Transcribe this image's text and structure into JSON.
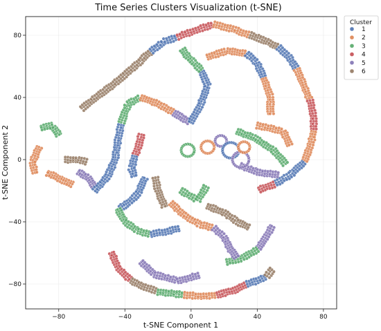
{
  "chart_data": {
    "type": "scatter",
    "title": "Time Series Clusters Visualization (t-SNE)",
    "xlabel": "t-SNE Component 1",
    "ylabel": "t-SNE Component 2",
    "xlim": [
      -100,
      88
    ],
    "ylim": [
      -96,
      92
    ],
    "xticks": [
      -80,
      -40,
      0,
      40,
      80
    ],
    "yticks": [
      -80,
      -40,
      0,
      40,
      80
    ],
    "xtick_labels": [
      "−80",
      "−40",
      "0",
      "40",
      "80"
    ],
    "ytick_labels": [
      "−80",
      "−40",
      "0",
      "40",
      "80"
    ],
    "grid": true,
    "legend": {
      "title": "Cluster",
      "placement": "outside-upper-right"
    },
    "series": [
      {
        "name": "1",
        "color": "#4c72b0"
      },
      {
        "name": "2",
        "color": "#dd8452"
      },
      {
        "name": "3",
        "color": "#55a868"
      },
      {
        "name": "4",
        "color": "#c44e52"
      },
      {
        "name": "5",
        "color": "#8172b3"
      },
      {
        "name": "6",
        "color": "#937860"
      }
    ],
    "curves": [
      {
        "series": "6",
        "points": [
          [
            -66,
            33
          ],
          [
            -56,
            41
          ],
          [
            -45,
            50
          ],
          [
            -34,
            60
          ],
          [
            -24,
            70
          ]
        ]
      },
      {
        "series": "1",
        "points": [
          [
            -24,
            70
          ],
          [
            -16,
            76
          ],
          [
            -8,
            79
          ]
        ]
      },
      {
        "series": "4",
        "points": [
          [
            -8,
            79
          ],
          [
            0,
            82
          ],
          [
            8,
            85
          ],
          [
            14,
            87
          ]
        ]
      },
      {
        "series": "2",
        "points": [
          [
            14,
            87
          ],
          [
            25,
            84
          ],
          [
            36,
            80
          ]
        ]
      },
      {
        "series": "6",
        "points": [
          [
            36,
            80
          ],
          [
            46,
            76
          ],
          [
            53,
            72
          ]
        ]
      },
      {
        "series": "1",
        "points": [
          [
            53,
            72
          ],
          [
            59,
            66
          ],
          [
            64,
            58
          ]
        ]
      },
      {
        "series": "2",
        "points": [
          [
            64,
            58
          ],
          [
            68,
            48
          ],
          [
            72,
            38
          ]
        ]
      },
      {
        "series": "4",
        "points": [
          [
            72,
            38
          ],
          [
            74,
            28
          ],
          [
            74,
            18
          ]
        ]
      },
      {
        "series": "2",
        "points": [
          [
            74,
            18
          ],
          [
            72,
            8
          ],
          [
            68,
            -2
          ]
        ]
      },
      {
        "series": "1",
        "points": [
          [
            68,
            -2
          ],
          [
            60,
            -10
          ],
          [
            50,
            -16
          ]
        ]
      },
      {
        "series": "4",
        "points": [
          [
            50,
            -16
          ],
          [
            44,
            -18
          ],
          [
            40,
            -20
          ]
        ]
      },
      {
        "series": "5",
        "points": [
          [
            49,
            -43
          ],
          [
            44,
            -52
          ],
          [
            40,
            -58
          ]
        ]
      },
      {
        "series": "3",
        "points": [
          [
            40,
            -58
          ],
          [
            30,
            -64
          ],
          [
            20,
            -66
          ]
        ]
      },
      {
        "series": "4",
        "points": [
          [
            -48,
            -60
          ],
          [
            -44,
            -70
          ],
          [
            -36,
            -78
          ]
        ]
      },
      {
        "series": "6",
        "points": [
          [
            -36,
            -78
          ],
          [
            -28,
            -82
          ],
          [
            -20,
            -85
          ]
        ]
      },
      {
        "series": "3",
        "points": [
          [
            -20,
            -85
          ],
          [
            -12,
            -86
          ],
          [
            -4,
            -87
          ]
        ]
      },
      {
        "series": "2",
        "points": [
          [
            -4,
            -87
          ],
          [
            6,
            -88
          ],
          [
            16,
            -87
          ]
        ]
      },
      {
        "series": "4",
        "points": [
          [
            16,
            -87
          ],
          [
            26,
            -84
          ],
          [
            34,
            -80
          ]
        ]
      },
      {
        "series": "1",
        "points": [
          [
            34,
            -80
          ],
          [
            40,
            -78
          ],
          [
            46,
            -75
          ]
        ]
      },
      {
        "series": "6",
        "points": [
          [
            46,
            -75
          ],
          [
            48,
            -72
          ],
          [
            50,
            -70
          ]
        ]
      },
      {
        "series": "1",
        "points": [
          [
            -28,
            -12
          ],
          [
            -32,
            -22
          ],
          [
            -38,
            -28
          ],
          [
            -44,
            -32
          ]
        ]
      },
      {
        "series": "3",
        "points": [
          [
            -44,
            -32
          ],
          [
            -40,
            -40
          ],
          [
            -32,
            -46
          ],
          [
            -24,
            -48
          ]
        ]
      },
      {
        "series": "1",
        "points": [
          [
            -24,
            -48
          ],
          [
            -14,
            -46
          ],
          [
            -6,
            -44
          ]
        ]
      },
      {
        "series": "2",
        "points": [
          [
            -12,
            -28
          ],
          [
            -4,
            -36
          ],
          [
            6,
            -42
          ],
          [
            14,
            -44
          ]
        ]
      },
      {
        "series": "5",
        "points": [
          [
            14,
            -44
          ],
          [
            20,
            -50
          ],
          [
            24,
            -58
          ],
          [
            28,
            -64
          ]
        ]
      },
      {
        "series": "6",
        "points": [
          [
            10,
            -30
          ],
          [
            20,
            -34
          ],
          [
            28,
            -40
          ],
          [
            36,
            -44
          ]
        ]
      },
      {
        "series": "4",
        "points": [
          [
            -30,
            16
          ],
          [
            -32,
            8
          ],
          [
            -34,
            2
          ]
        ]
      },
      {
        "series": "1",
        "points": [
          [
            -34,
            2
          ],
          [
            -36,
            -6
          ],
          [
            -34,
            -12
          ]
        ]
      },
      {
        "series": "6",
        "points": [
          [
            -16,
            -30
          ],
          [
            -20,
            -20
          ],
          [
            -22,
            -10
          ]
        ]
      },
      {
        "series": "3",
        "points": [
          [
            -80,
            16
          ],
          [
            -84,
            22
          ],
          [
            -92,
            20
          ]
        ]
      },
      {
        "series": "2",
        "points": [
          [
            -92,
            8
          ],
          [
            -96,
            -2
          ],
          [
            -94,
            -10
          ]
        ]
      },
      {
        "series": "6",
        "points": [
          [
            -76,
            0
          ],
          [
            -68,
            0
          ],
          [
            -62,
            -2
          ]
        ]
      },
      {
        "series": "5",
        "points": [
          [
            -68,
            -8
          ],
          [
            -62,
            -12
          ],
          [
            -58,
            -18
          ]
        ]
      },
      {
        "series": "1",
        "points": [
          [
            -58,
            -20
          ],
          [
            -50,
            -10
          ],
          [
            -46,
            0
          ],
          [
            -44,
            14
          ],
          [
            -42,
            24
          ]
        ]
      },
      {
        "series": "3",
        "points": [
          [
            -42,
            24
          ],
          [
            -38,
            36
          ],
          [
            -30,
            40
          ]
        ]
      },
      {
        "series": "2",
        "points": [
          [
            -30,
            40
          ],
          [
            -20,
            36
          ],
          [
            -10,
            30
          ]
        ]
      },
      {
        "series": "5",
        "points": [
          [
            -10,
            30
          ],
          [
            -4,
            26
          ],
          [
            0,
            24
          ]
        ]
      },
      {
        "series": "1",
        "points": [
          [
            0,
            24
          ],
          [
            6,
            36
          ],
          [
            10,
            48
          ],
          [
            6,
            58
          ]
        ]
      },
      {
        "series": "3",
        "points": [
          [
            6,
            58
          ],
          [
            -2,
            66
          ],
          [
            -6,
            72
          ]
        ]
      },
      {
        "series": "2",
        "points": [
          [
            10,
            66
          ],
          [
            22,
            70
          ],
          [
            34,
            68
          ]
        ]
      },
      {
        "series": "1",
        "points": [
          [
            34,
            68
          ],
          [
            40,
            62
          ],
          [
            44,
            52
          ]
        ]
      },
      {
        "series": "2",
        "points": [
          [
            44,
            52
          ],
          [
            48,
            40
          ],
          [
            48,
            28
          ]
        ]
      },
      {
        "series": "3",
        "points": [
          [
            28,
            18
          ],
          [
            38,
            14
          ],
          [
            50,
            6
          ],
          [
            58,
            -4
          ]
        ]
      },
      {
        "series": "5",
        "points": [
          [
            30,
            -4
          ],
          [
            40,
            -8
          ],
          [
            54,
            -10
          ]
        ]
      },
      {
        "series": "2",
        "points": [
          [
            40,
            22
          ],
          [
            56,
            18
          ],
          [
            60,
            8
          ]
        ]
      },
      {
        "series": "3",
        "points": [
          [
            -6,
            -20
          ],
          [
            4,
            -26
          ],
          [
            10,
            -16
          ]
        ]
      },
      {
        "series": "5",
        "points": [
          [
            -30,
            -66
          ],
          [
            -22,
            -74
          ],
          [
            -8,
            -78
          ],
          [
            6,
            -74
          ]
        ]
      },
      {
        "series": "2",
        "points": [
          [
            -72,
            -16
          ],
          [
            -80,
            -12
          ],
          [
            -88,
            -8
          ]
        ]
      }
    ],
    "loops": [
      {
        "series": "5",
        "center": [
          18,
          12
        ],
        "radius": 3.5
      },
      {
        "series": "1",
        "center": [
          24,
          6
        ],
        "radius": 5
      },
      {
        "series": "2",
        "center": [
          10,
          8
        ],
        "radius": 4
      },
      {
        "series": "3",
        "center": [
          -2,
          6
        ],
        "radius": 4
      },
      {
        "series": "5",
        "center": [
          30,
          0
        ],
        "radius": 5
      },
      {
        "series": "2",
        "center": [
          32,
          8
        ],
        "radius": 3.5
      }
    ]
  }
}
